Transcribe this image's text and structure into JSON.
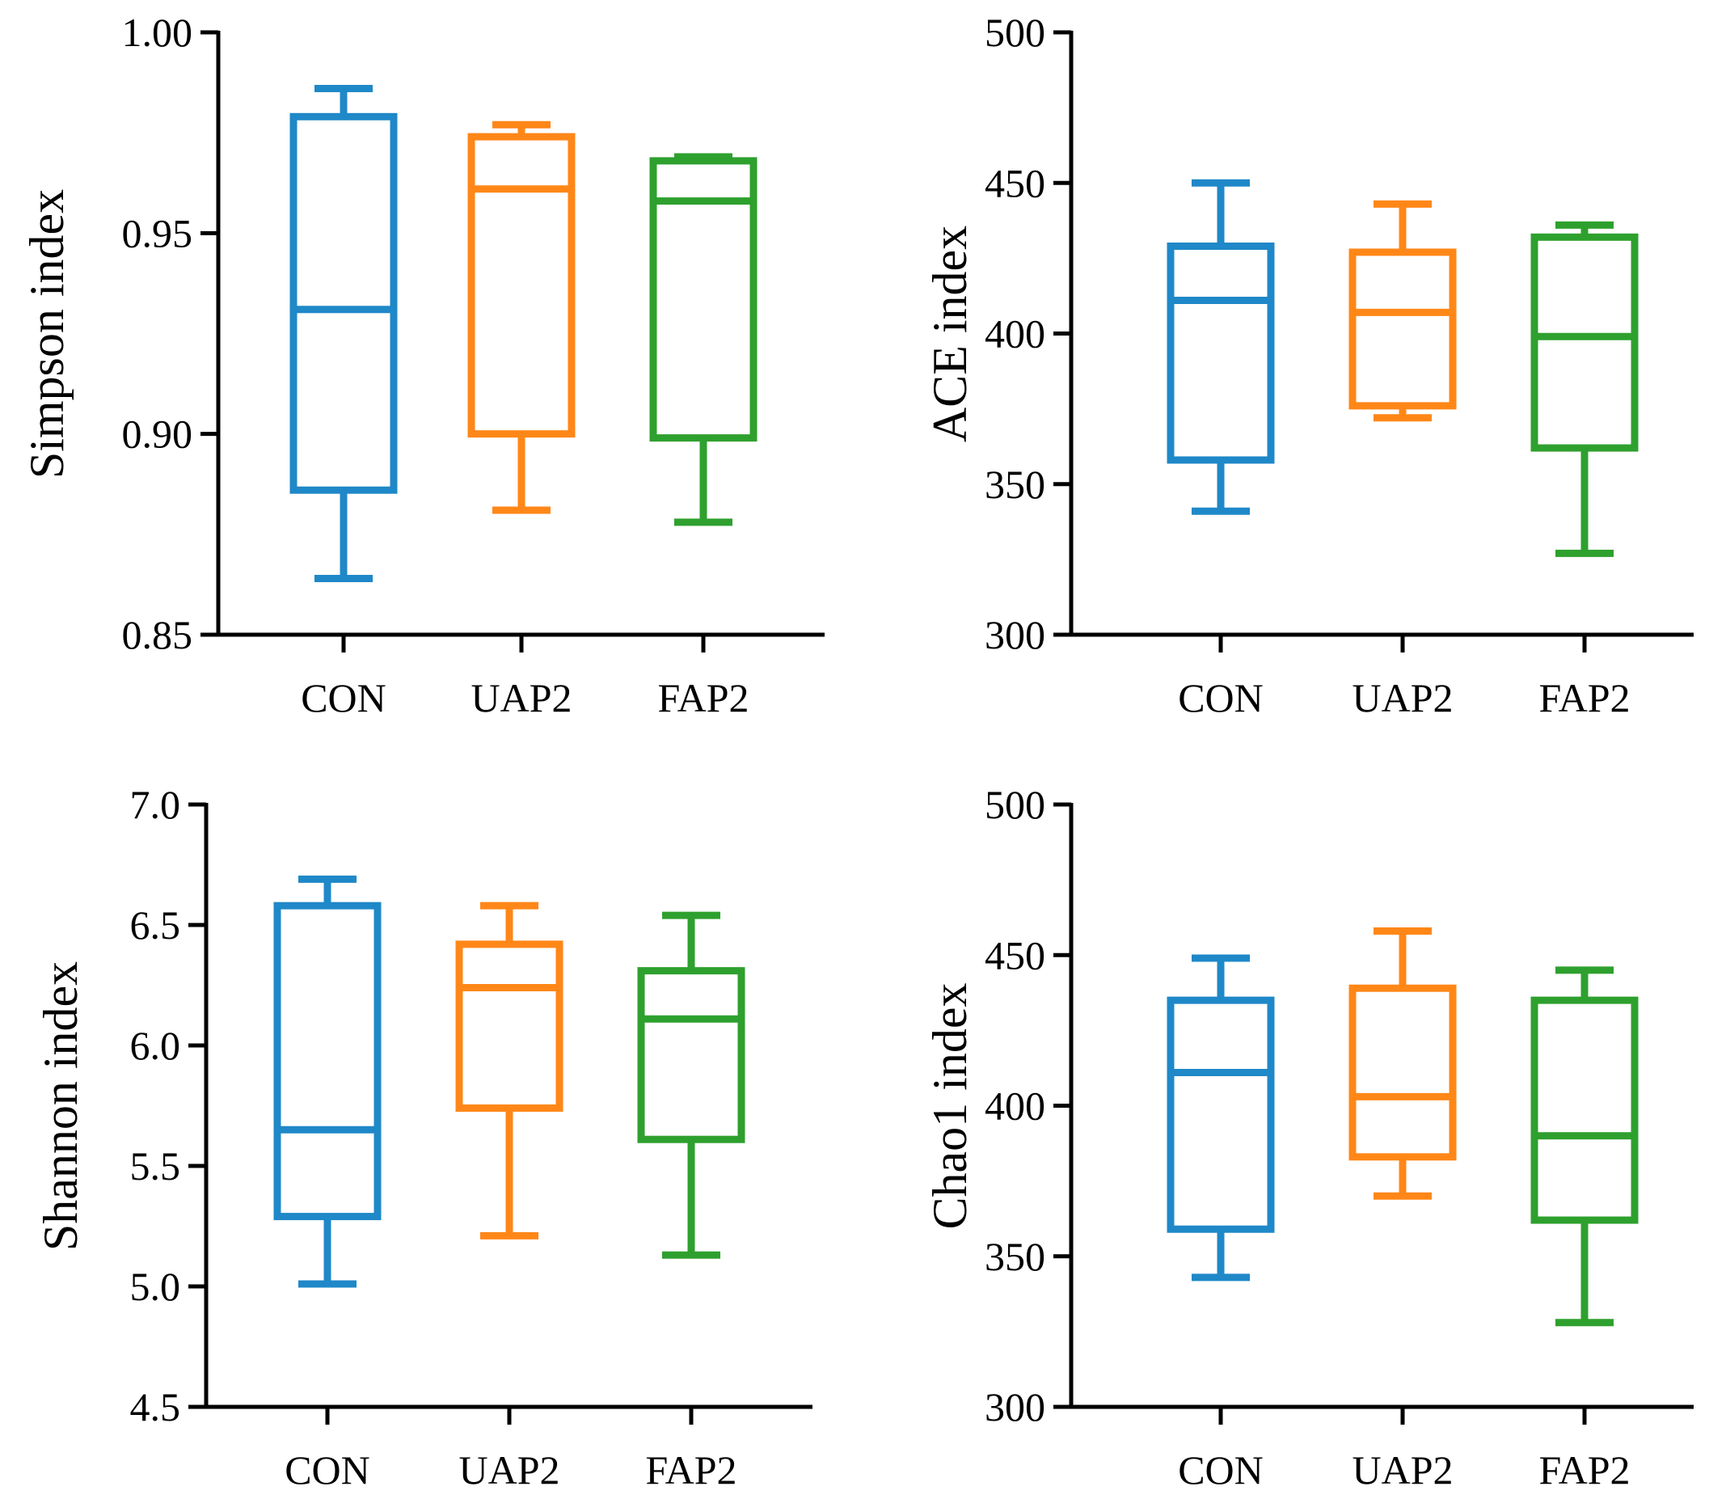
{
  "colors": {
    "CON": "#1f88c8",
    "UAP2": "#ff8718",
    "FAP2": "#2ea02e",
    "axis": "#000000"
  },
  "chart_data": [
    {
      "type": "box",
      "ylabel": "Simpson index",
      "ylim": [
        0.85,
        1.0
      ],
      "yticks": [
        0.85,
        0.9,
        0.95,
        1.0
      ],
      "ytick_labels": [
        "0.85",
        "0.90",
        "0.95",
        "1.00"
      ],
      "categories": [
        "CON",
        "UAP2",
        "FAP2"
      ],
      "boxes": [
        {
          "name": "CON",
          "min": 0.864,
          "q1": 0.886,
          "median": 0.931,
          "q3": 0.979,
          "max": 0.986
        },
        {
          "name": "UAP2",
          "min": 0.881,
          "q1": 0.9,
          "median": 0.961,
          "q3": 0.974,
          "max": 0.977
        },
        {
          "name": "FAP2",
          "min": 0.878,
          "q1": 0.899,
          "median": 0.958,
          "q3": 0.968,
          "max": 0.969
        }
      ]
    },
    {
      "type": "box",
      "ylabel": "ACE index",
      "ylim": [
        300,
        500
      ],
      "yticks": [
        300,
        350,
        400,
        450,
        500
      ],
      "ytick_labels": [
        "300",
        "350",
        "400",
        "450",
        "500"
      ],
      "categories": [
        "CON",
        "UAP2",
        "FAP2"
      ],
      "boxes": [
        {
          "name": "CON",
          "min": 341,
          "q1": 358,
          "median": 411,
          "q3": 429,
          "max": 450
        },
        {
          "name": "UAP2",
          "min": 372,
          "q1": 376,
          "median": 407,
          "q3": 427,
          "max": 443
        },
        {
          "name": "FAP2",
          "min": 327,
          "q1": 362,
          "median": 399,
          "q3": 432,
          "max": 436
        }
      ]
    },
    {
      "type": "box",
      "ylabel": "Shannon index",
      "ylim": [
        4.5,
        7.0
      ],
      "yticks": [
        4.5,
        5.0,
        5.5,
        6.0,
        6.5,
        7.0
      ],
      "ytick_labels": [
        "4.5",
        "5.0",
        "5.5",
        "6.0",
        "6.5",
        "7.0"
      ],
      "categories": [
        "CON",
        "UAP2",
        "FAP2"
      ],
      "boxes": [
        {
          "name": "CON",
          "min": 5.01,
          "q1": 5.29,
          "median": 5.65,
          "q3": 6.58,
          "max": 6.69
        },
        {
          "name": "UAP2",
          "min": 5.21,
          "q1": 5.74,
          "median": 6.24,
          "q3": 6.42,
          "max": 6.58
        },
        {
          "name": "FAP2",
          "min": 5.13,
          "q1": 5.61,
          "median": 6.11,
          "q3": 6.31,
          "max": 6.54
        }
      ]
    },
    {
      "type": "box",
      "ylabel": "Chao1 index",
      "ylim": [
        300,
        500
      ],
      "yticks": [
        300,
        350,
        400,
        450,
        500
      ],
      "ytick_labels": [
        "300",
        "350",
        "400",
        "450",
        "500"
      ],
      "categories": [
        "CON",
        "UAP2",
        "FAP2"
      ],
      "boxes": [
        {
          "name": "CON",
          "min": 343,
          "q1": 359,
          "median": 411,
          "q3": 435,
          "max": 449
        },
        {
          "name": "UAP2",
          "min": 370,
          "q1": 383,
          "median": 403,
          "q3": 439,
          "max": 458
        },
        {
          "name": "FAP2",
          "min": 328,
          "q1": 362,
          "median": 390,
          "q3": 435,
          "max": 445
        }
      ]
    }
  ]
}
